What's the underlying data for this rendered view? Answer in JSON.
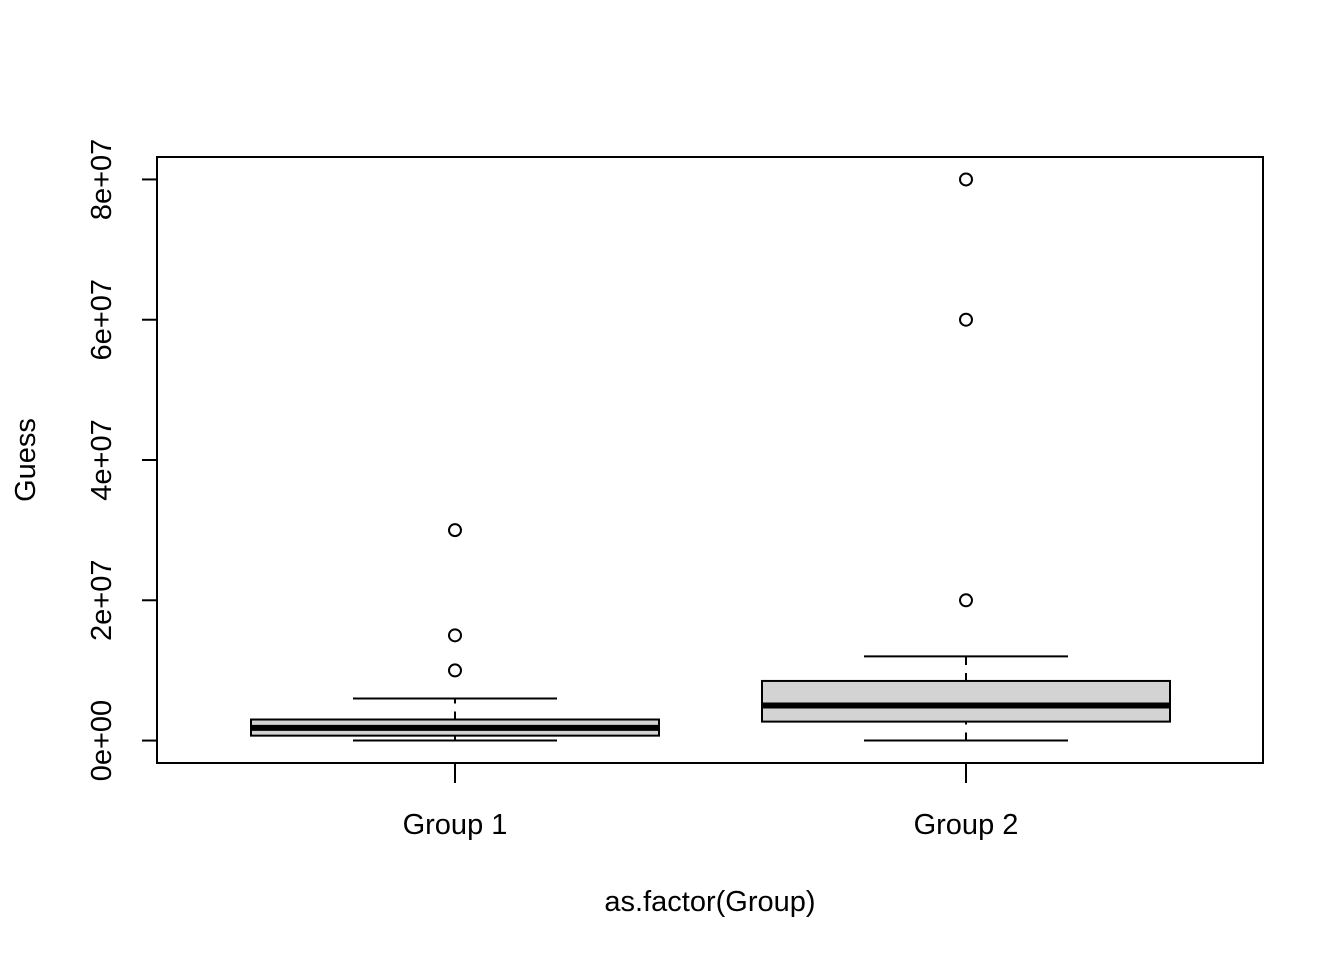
{
  "chart_data": {
    "type": "boxplot",
    "title": "",
    "xlabel": "as.factor(Group)",
    "ylabel": "Guess",
    "ylim": [
      -3200000,
      83200000
    ],
    "yticks": [
      0,
      20000000,
      40000000,
      60000000,
      80000000
    ],
    "ytick_labels": [
      "0e+00",
      "2e+07",
      "4e+07",
      "6e+07",
      "8e+07"
    ],
    "box_fill": "#d3d3d3",
    "grid": false,
    "groups": [
      {
        "label": "Group 1",
        "whisker_low": 0,
        "q1": 700000,
        "median": 1800000,
        "q3": 3000000,
        "whisker_high": 6000000,
        "outliers": [
          10000000,
          15000000,
          30000000
        ]
      },
      {
        "label": "Group 2",
        "whisker_low": 0,
        "q1": 2700000,
        "median": 5000000,
        "q3": 8500000,
        "whisker_high": 12000000,
        "outliers": [
          20000000,
          60000000,
          80000000
        ]
      }
    ]
  }
}
